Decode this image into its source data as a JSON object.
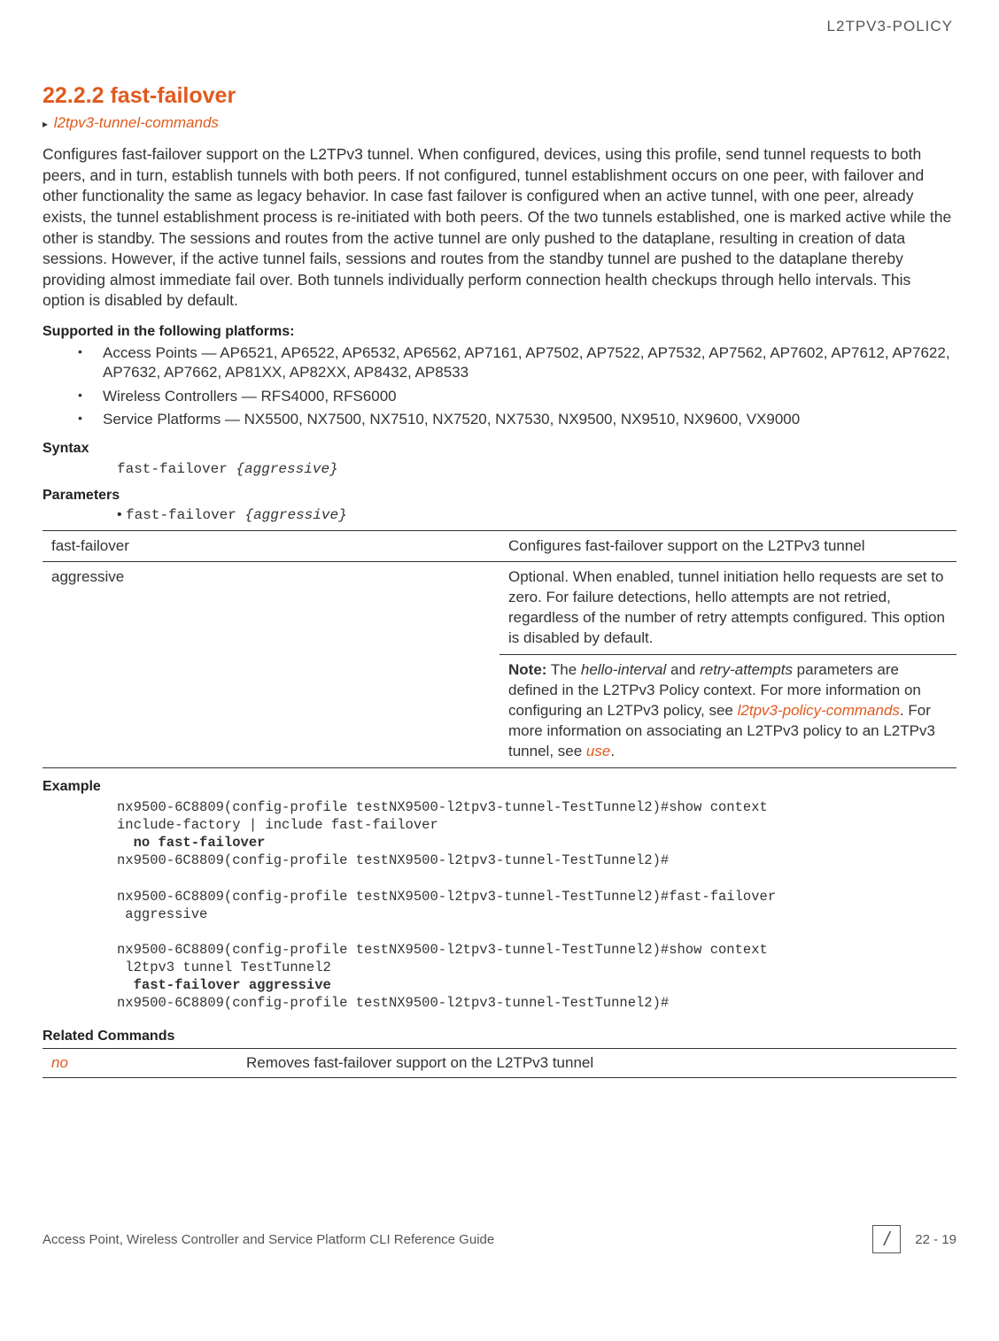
{
  "header": {
    "section": "L2TPV3-POLICY"
  },
  "heading": {
    "number": "22.2.2",
    "title": "fast-failover"
  },
  "breadcrumb": {
    "arrow": "▸",
    "link": "l2tpv3-tunnel-commands"
  },
  "intro": "Configures fast-failover support on the L2TPv3 tunnel. When configured, devices, using this profile, send tunnel requests to both peers, and in turn, establish tunnels with both peers. If not configured, tunnel establishment occurs on one peer, with failover and other functionality the same as legacy behavior. In case fast failover is configured when an active tunnel, with one peer, already exists, the tunnel establishment process is re-initiated with both peers. Of the two tunnels established, one is marked active while the other is standby. The sessions and routes from the active tunnel are only pushed to the dataplane, resulting in creation of data sessions. However, if the active tunnel fails, sessions and routes from the standby tunnel are pushed to the dataplane thereby providing almost immediate fail over. Both tunnels individually perform connection health checkups through hello intervals. This option is disabled by default.",
  "platforms": {
    "label": "Supported in the following platforms:",
    "items": [
      "Access Points — AP6521, AP6522, AP6532, AP6562, AP7161, AP7502, AP7522, AP7532, AP7562, AP7602, AP7612, AP7622, AP7632, AP7662, AP81XX, AP82XX, AP8432, AP8533",
      "Wireless Controllers — RFS4000, RFS6000",
      "Service Platforms — NX5500, NX7500, NX7510, NX7520, NX7530, NX9500, NX9510, NX9600, VX9000"
    ]
  },
  "syntax": {
    "label": "Syntax",
    "line_plain": "fast-failover ",
    "line_italic": "{aggressive}"
  },
  "parameters": {
    "label": "Parameters",
    "bullet_plain": "fast-failover ",
    "bullet_italic": "{aggressive}",
    "rows": [
      {
        "name": "fast-failover",
        "desc": "Configures fast-failover support on the L2TPv3 tunnel"
      },
      {
        "name": "aggressive",
        "desc": "Optional. When enabled, tunnel initiation hello requests are set to zero. For failure detections, hello attempts are not retried, regardless of the number of retry attempts configured. This option is disabled by default.",
        "note_label": "Note:",
        "note_pre": " The ",
        "note_em1": "hello-interval",
        "note_mid1": " and ",
        "note_em2": "retry-attempts",
        "note_mid2": " parameters are defined in the L2TPv3 Policy context. For more information on configuring an L2TPv3 policy, see ",
        "note_link1": "l2tpv3-policy-commands",
        "note_mid3": ". For more information on associating an L2TPv3 policy to an L2TPv3 tunnel, see ",
        "note_link2": "use",
        "note_post": "."
      }
    ]
  },
  "example": {
    "label": "Example",
    "l1": "nx9500-6C8809(config-profile testNX9500-l2tpv3-tunnel-TestTunnel2)#show context",
    "l2": "include-factory | include fast-failover",
    "l3": "  no fast-failover",
    "l4": "nx9500-6C8809(config-profile testNX9500-l2tpv3-tunnel-TestTunnel2)#",
    "l5": "",
    "l6": "nx9500-6C8809(config-profile testNX9500-l2tpv3-tunnel-TestTunnel2)#fast-failover",
    "l7": " aggressive",
    "l8": "",
    "l9": "nx9500-6C8809(config-profile testNX9500-l2tpv3-tunnel-TestTunnel2)#show context",
    "l10": " l2tpv3 tunnel TestTunnel2",
    "l11": "  fast-failover aggressive",
    "l12": "nx9500-6C8809(config-profile testNX9500-l2tpv3-tunnel-TestTunnel2)#"
  },
  "related": {
    "label": "Related Commands",
    "rows": [
      {
        "name": "no",
        "desc": "Removes fast-failover support on the L2TPv3 tunnel"
      }
    ]
  },
  "footer": {
    "left": "Access Point, Wireless Controller and Service Platform CLI Reference Guide",
    "slash": "/",
    "page": "22 - 19"
  }
}
